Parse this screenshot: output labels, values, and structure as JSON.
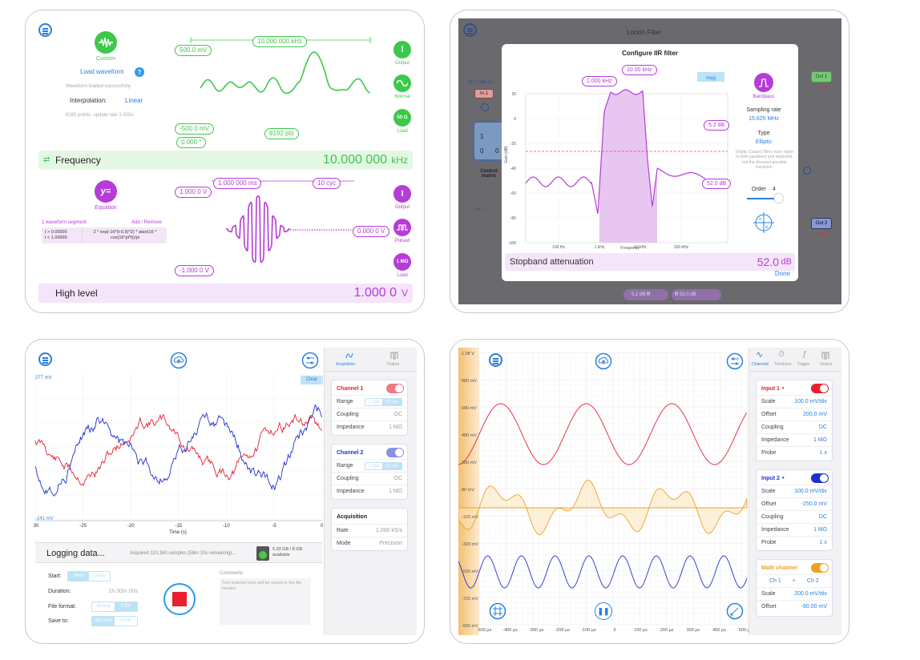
{
  "p1": {
    "custom": "Custom",
    "load_waveform": "Load waveform",
    "help": "?",
    "loaded": "Waveform loaded successfully.",
    "interp_label": "Interpolation:",
    "interp_value": "Linear",
    "points_info": "8192 points, update rate 1 GS/s",
    "freq_top": "10.000 000 kHz",
    "amp_top": "500.0 mV",
    "amp_bot": "-500.0 mV",
    "phase": "0.000 °",
    "pts": "8192 pts",
    "output": "Output",
    "normal": "Normal",
    "load": "Load",
    "load_value": "50 Ω",
    "freq_label": "Frequency",
    "freq_value": "10.000 000",
    "freq_unit": "kHz",
    "equation": "Equation",
    "segments": "1 waveform segment",
    "add_remove": "Add / Remove",
    "eq_cond": "t > 0.00000\nt < 1.00000",
    "eq_expr": "2 * exp(-16*(t-0.5)^2) * atan(16 * cos(16*pi*t))/pi",
    "burst_time": "1.000 000 ms",
    "cycles": "10 cyc",
    "hi_level": "1.000 0 V",
    "lo_level": "-1.000 0 V",
    "idle": "0.000 0 V",
    "output2": "Output",
    "pulsed": "Pulsed",
    "load2": "Load",
    "load2_value": "1 MΩ",
    "hl_label": "High level",
    "hl_value": "1.000 0",
    "hl_unit": "V",
    "colors": {
      "green": "#3cc84a",
      "purple": "#b63bd8",
      "blue": "#2a7fe0"
    }
  },
  "p2": {
    "dialog_title": "Configure IIR filter",
    "cutoff1": "1.000 kHz",
    "cutoff2": "10.00 kHz",
    "mag": "mag",
    "pass_db": "5.2 dB",
    "stop_db": "52.0 dB",
    "bandpass": "Bandpass",
    "sampling_label": "Sampling rate",
    "sampling_value": "15.625 MHz",
    "type_label": "Type",
    "type_value": "Elliptic",
    "type_desc": "Elliptic (Cauer) filters have ripple in both passband and stopband, but the sharpest possible transition.",
    "order_label": "Order",
    "order_value": "4",
    "param_label": "Stopband attenuation",
    "param_value": "52.0",
    "param_unit": "dB",
    "done": "Done",
    "ylabel": "Gain (dB)",
    "xlabel": "Frequency",
    "yticks": [
      "20",
      "0",
      "-20",
      "-40",
      "-60",
      "-80",
      "-100"
    ],
    "xticks": [
      "100 Hz",
      "1 kHz",
      "10 kHz",
      "100 kHz"
    ],
    "bg": {
      "in1": "In 1",
      "dc": "DC | 1 MΩ | 5 ...",
      "matrix_label": "Control matrix",
      "m": [
        "1",
        "0",
        "0"
      ],
      "out1": "Out 1",
      "off1": "OFF",
      "out2": "Out 2",
      "off2": "OFF",
      "dc2": "DC ...",
      "title_frag": "Lockin Filter",
      "pill1": "5.2 dB",
      "r1": "R",
      "pill2": "52.0 dB",
      "r2": "R"
    }
  },
  "p3": {
    "clear": "Clear",
    "ytop": "277 mV",
    "ybot": "-241 mV",
    "xticks": [
      "-30",
      "-25",
      "-20",
      "-15",
      "-10",
      "-5",
      "0"
    ],
    "xlabel": "Time (s)",
    "logging": "Logging data...",
    "acquired": "Acquired 110,160 samples (58m 10s remaining)...",
    "storage": "5.33 GB / 8 GB available",
    "start_label": "Start:",
    "now": "Now",
    "delay": "Delay",
    "duration_label": "Duration:",
    "duration_value": "1h 30m 00s",
    "format_label": "File format:",
    "binary": "Binary",
    "csv": "CSV",
    "save_label": "Save to:",
    "sdcard": "SD card",
    "ram": "RAM",
    "comments_label": "Comments",
    "comments_placeholder": "Text entered here will be saved in the file header.",
    "tab_acq": "Acquisition",
    "tab_out": "Output",
    "ch1": {
      "title": "Channel 1",
      "range": "Range",
      "r1": "1 Vpp",
      "r2": "10 Vpp",
      "coupling": "Coupling",
      "coupling_v": "DC",
      "impedance": "Impedance",
      "impedance_v": "1 MΩ"
    },
    "ch2": {
      "title": "Channel 2",
      "range": "Range",
      "r1": "1 Vpp",
      "r2": "10 Vpp",
      "coupling": "Coupling",
      "coupling_v": "DC",
      "impedance": "Impedance",
      "impedance_v": "1 MΩ"
    },
    "acq": {
      "title": "Acquisition",
      "rate": "Rate",
      "rate_v": "1.000 kS/s",
      "mode": "Mode",
      "mode_v": "Precision"
    }
  },
  "p4": {
    "yticks": [
      "1.08 V",
      "880 mV",
      "680 mV",
      "480 mV",
      "280 mV",
      "80 mV",
      "-120 mV",
      "-320 mV",
      "-520 mV",
      "-720 mV",
      "-920 mV"
    ],
    "xticks": [
      "-500 µs",
      "-400 µs",
      "-300 µs",
      "-200 µs",
      "-100 µs",
      "0",
      "100 µs",
      "200 µs",
      "300 µs",
      "400 µs",
      "500 µs"
    ],
    "tabs": [
      "Channels",
      "Timebase",
      "Trigger",
      "Output"
    ],
    "in1": {
      "title": "Input 1",
      "scale": "Scale",
      "scale_v": "100.0 mV/div",
      "offset": "Offset",
      "offset_v": "200.0 mV",
      "coupling": "Coupling",
      "coupling_v": "DC",
      "impedance": "Impedance",
      "impedance_v": "1 MΩ",
      "probe": "Probe",
      "probe_v": "1 x"
    },
    "in2": {
      "title": "Input 2",
      "scale": "Scale",
      "scale_v": "100.0 mV/div",
      "offset": "Offset",
      "offset_v": "-250.0 mV",
      "coupling": "Coupling",
      "coupling_v": "DC",
      "impedance": "Impedance",
      "impedance_v": "1 MΩ",
      "probe": "Probe",
      "probe_v": "1 x"
    },
    "math": {
      "title": "Math channel",
      "a": "Ch 1",
      "op": "+",
      "b": "Ch 2",
      "scale": "Scale",
      "scale_v": "200.0 mV/div",
      "offset": "Offset",
      "offset_v": "-80.00 mV"
    }
  }
}
